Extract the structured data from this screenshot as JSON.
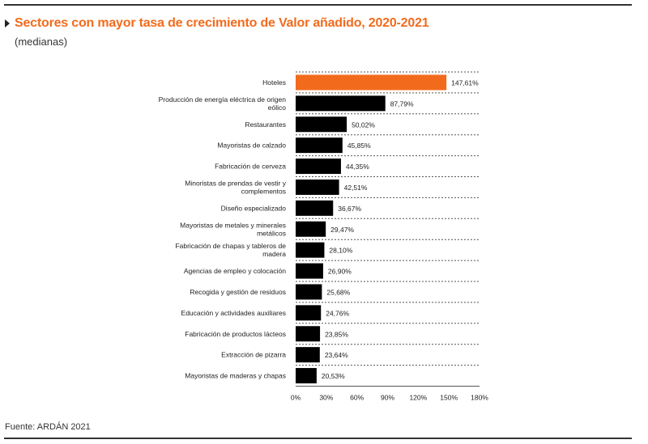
{
  "header": {
    "title": "Sectores con mayor tasa de crecimiento de Valor añadido, 2020-2021",
    "subtitle": "(medianas)"
  },
  "footer": {
    "source": "Fuente: ARDÁN 2021"
  },
  "colors": {
    "highlight": "#f26b1d",
    "bar": "#000000",
    "title": "#f26b1d"
  },
  "chart_data": {
    "type": "bar",
    "orientation": "horizontal",
    "title": "Sectores con mayor tasa de crecimiento de Valor añadido, 2020-2021",
    "subtitle": "(medianas)",
    "xlabel": "",
    "ylabel": "",
    "xlim": [
      0,
      180
    ],
    "xticks": [
      "0%",
      "30%",
      "60%",
      "90%",
      "120%",
      "150%",
      "180%"
    ],
    "grid": "dotted horizontal separators",
    "legend": "none",
    "categories": [
      [
        "Hoteles"
      ],
      [
        "Producción de energía eléctrica de origen",
        "eólico"
      ],
      [
        "Restaurantes"
      ],
      [
        "Mayoristas de calzado"
      ],
      [
        "Fabricación de cerveza"
      ],
      [
        "Minoristas de prendas de vestir y",
        "complementos"
      ],
      [
        "Diseño especializado"
      ],
      [
        "Mayoristas de metales y minerales",
        "metálicos"
      ],
      [
        "Fabricación de chapas y tableros de",
        "madera"
      ],
      [
        "Agencias de empleo y colocación"
      ],
      [
        "Recogida y gestión de residuos"
      ],
      [
        "Educación y actividades auxiliares"
      ],
      [
        "Fabricación de productos lácteos"
      ],
      [
        "Extracción de pizarra"
      ],
      [
        "Mayoristas de maderas y chapas"
      ]
    ],
    "values": [
      147.61,
      87.79,
      50.02,
      45.85,
      44.35,
      42.51,
      36.67,
      29.47,
      28.1,
      26.9,
      25.68,
      24.76,
      23.85,
      23.64,
      20.53
    ],
    "value_labels": [
      "147,61%",
      "87,79%",
      "50,02%",
      "45,85%",
      "44,35%",
      "42,51%",
      "36,67%",
      "29,47%",
      "28,10%",
      "26,90%",
      "25,68%",
      "24,76%",
      "23,85%",
      "23,64%",
      "20,53%"
    ],
    "highlighted_index": 0
  }
}
